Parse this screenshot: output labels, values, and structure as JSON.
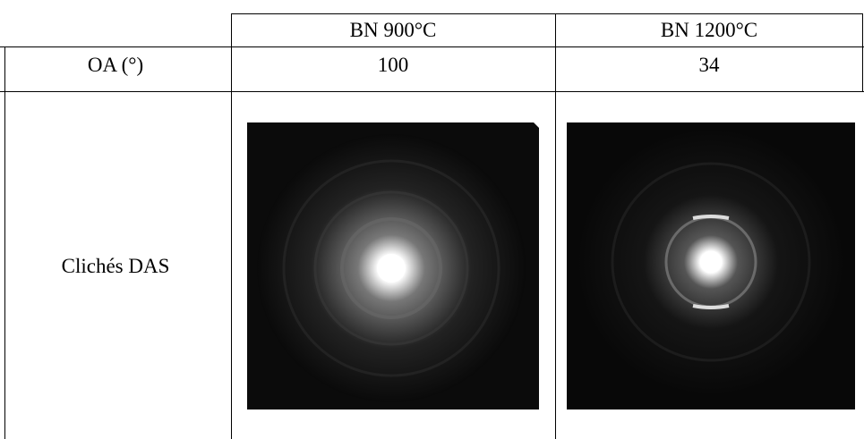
{
  "table": {
    "header": [
      "BN 900°C",
      "BN 1200°C"
    ],
    "rows": [
      [
        "OA (°)",
        "100",
        "34"
      ],
      [
        "Clichés DAS"
      ]
    ]
  }
}
